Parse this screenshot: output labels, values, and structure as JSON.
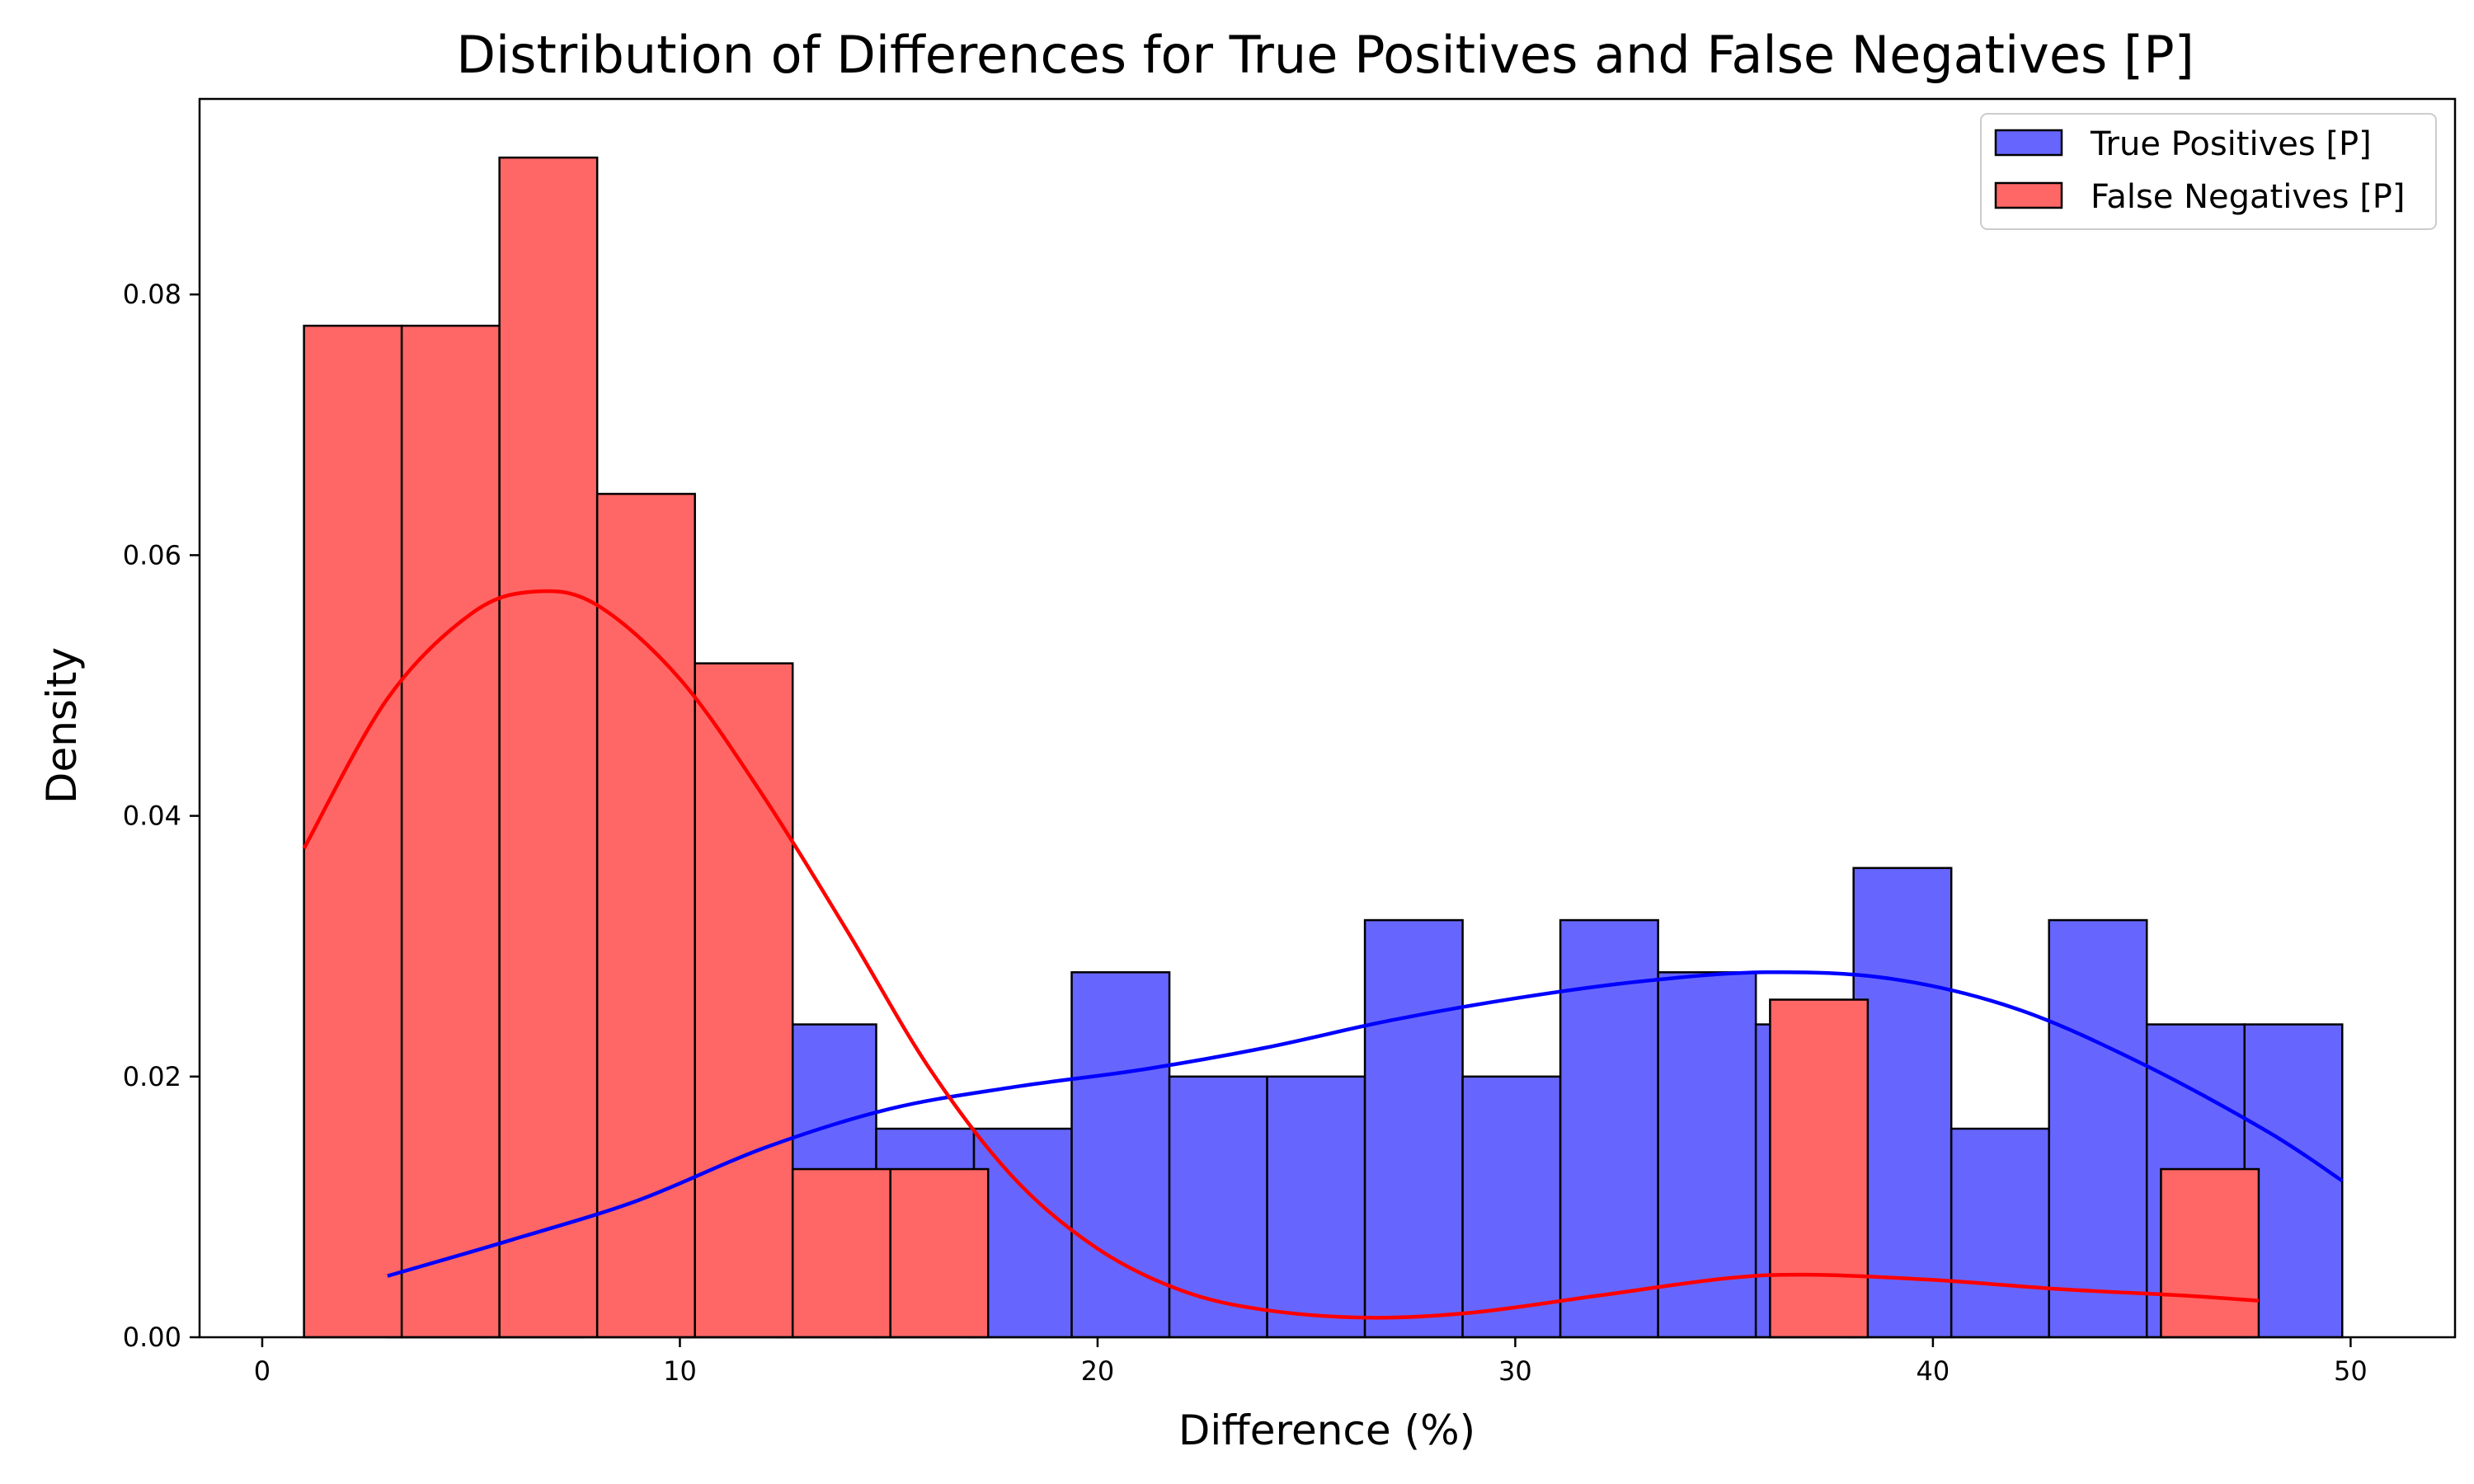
{
  "chart_data": {
    "type": "bar",
    "title": "Distribution of Differences for True Positives and False Negatives [P]",
    "xlabel": "Difference (%)",
    "ylabel": "Density",
    "xlim": [
      -1.5,
      52.5
    ],
    "ylim": [
      0,
      0.095
    ],
    "xticks": [
      0,
      10,
      20,
      30,
      40,
      50
    ],
    "yticks": [
      0.0,
      0.02,
      0.04,
      0.06,
      0.08
    ],
    "xtick_labels": [
      "0",
      "10",
      "20",
      "30",
      "40",
      "50"
    ],
    "ytick_labels": [
      "0.00",
      "0.02",
      "0.04",
      "0.06",
      "0.08"
    ],
    "grid": false,
    "legend_position": "top-right",
    "series": [
      {
        "name": "True Positives [P]",
        "color": "#6666ff",
        "kde_color": "#0000ff",
        "bin_edges": [
          3.0,
          5.34,
          7.68,
          10.02,
          12.36,
          14.7,
          17.04,
          19.38,
          21.72,
          24.06,
          26.4,
          28.74,
          31.08,
          33.42,
          35.76,
          38.1,
          40.44,
          42.78,
          45.12,
          47.46,
          49.8
        ],
        "values": [
          0.008,
          0.012,
          0.0,
          0.02,
          0.024,
          0.016,
          0.016,
          0.028,
          0.02,
          0.02,
          0.032,
          0.02,
          0.032,
          0.028,
          0.024,
          0.036,
          0.016,
          0.032,
          0.024,
          0.024
        ],
        "kde": {
          "x": [
            3,
            6,
            9,
            12,
            15,
            18,
            21,
            24,
            27,
            30,
            33,
            36,
            39,
            42,
            45,
            48,
            49.8
          ],
          "y": [
            0.0047,
            0.0075,
            0.0105,
            0.0145,
            0.0175,
            0.0192,
            0.0205,
            0.0222,
            0.0243,
            0.026,
            0.0273,
            0.028,
            0.0275,
            0.0252,
            0.021,
            0.0158,
            0.012
          ]
        }
      },
      {
        "name": "False Negatives [P]",
        "color": "#ff6666",
        "kde_color": "#ff0000",
        "bin_edges": [
          1.0,
          3.34,
          5.68,
          8.02,
          10.36,
          12.7,
          15.04,
          17.38,
          19.72,
          22.06,
          24.4,
          26.74,
          29.08,
          31.42,
          33.76,
          36.1,
          38.44,
          40.78,
          43.12,
          45.46,
          47.8
        ],
        "values": [
          0.0776,
          0.0776,
          0.0905,
          0.0647,
          0.0517,
          0.0129,
          0.0129,
          0.0,
          0.0,
          0.0,
          0.0,
          0.0,
          0.0,
          0.0,
          0.0,
          0.0259,
          0.0,
          0.0,
          0.0,
          0.0129
        ],
        "kde": {
          "x": [
            1,
            3,
            5,
            6.5,
            8,
            10,
            12,
            14,
            16,
            18,
            20,
            22,
            24,
            26.5,
            29,
            32,
            35,
            37,
            40,
            43,
            46,
            47.8
          ],
          "y": [
            0.0375,
            0.049,
            0.0555,
            0.0572,
            0.0562,
            0.0505,
            0.0415,
            0.0312,
            0.0205,
            0.0122,
            0.0068,
            0.0036,
            0.0021,
            0.0015,
            0.0019,
            0.0032,
            0.0045,
            0.0048,
            0.0044,
            0.0037,
            0.0032,
            0.0028
          ]
        }
      }
    ]
  }
}
